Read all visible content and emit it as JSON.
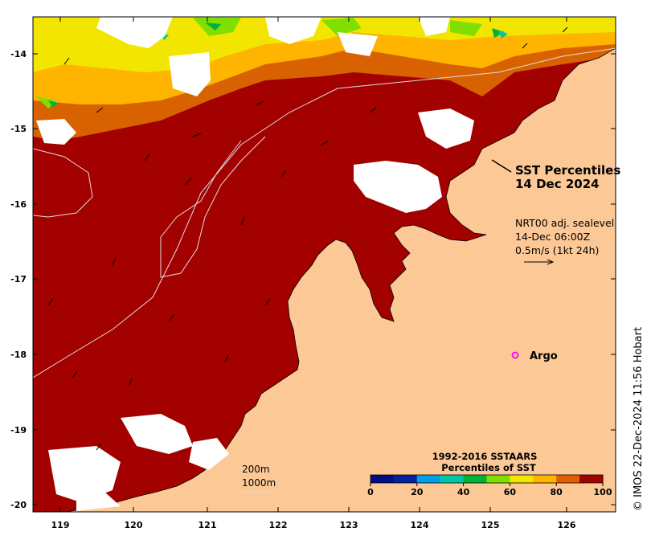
{
  "title": {
    "line1": "SST Percentiles",
    "line2": "14 Dec 2024"
  },
  "info": {
    "line1": "NRT00 adj. sealevel",
    "line2": "14-Dec 06:00Z",
    "line3": "0.5m/s (1kt 24h)"
  },
  "argo": {
    "label": "Argo",
    "color": "#ff00ff",
    "lon": 125.3,
    "lat": -18.0
  },
  "contours": {
    "label1": "200m",
    "label2": "1000m"
  },
  "colorbar": {
    "title1": "1992-2016 SSTAARS",
    "title2": "Percentiles of SST",
    "ticks": [
      "0",
      "20",
      "40",
      "60",
      "80",
      "100"
    ],
    "colors": [
      "#000f7f",
      "#00219e",
      "#009fe8",
      "#00c8a6",
      "#00b338",
      "#7fe000",
      "#f2e600",
      "#ffb400",
      "#e06000",
      "#a30000"
    ]
  },
  "credit": "© IMOS 22-Dec-2024 11:56 Hobart",
  "axes": {
    "x_ticks": [
      "119",
      "120",
      "121",
      "122",
      "123",
      "124",
      "125",
      "126"
    ],
    "y_ticks": [
      "-14",
      "-15",
      "-16",
      "-17",
      "-18",
      "-19",
      "-20"
    ],
    "lon_range": [
      118.6,
      126.8
    ],
    "lat_range": [
      -13.5,
      -20.1
    ]
  },
  "colors": {
    "land": "#fcc896",
    "ocean_hot": "#a30000",
    "ocean_warm": "#d96200",
    "ocean_mid": "#ffb400",
    "ocean_cool": "#f2e600",
    "cloud": "#ffffff"
  }
}
